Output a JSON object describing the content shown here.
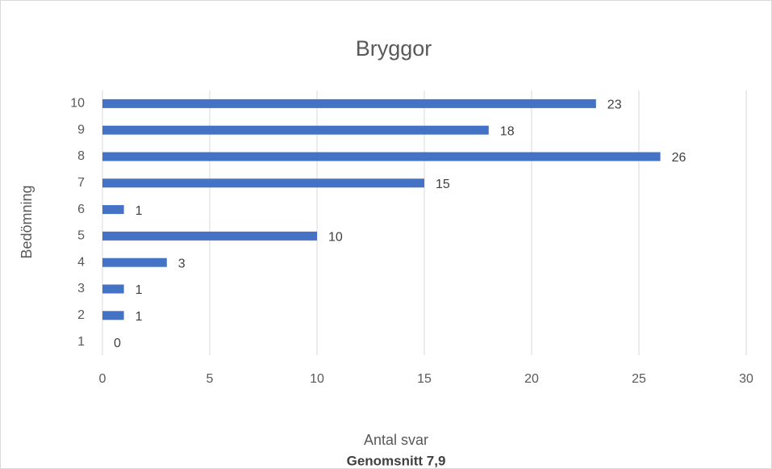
{
  "chart_data": {
    "type": "bar",
    "orientation": "horizontal",
    "title": "Bryggor",
    "x_label": "Antal svar",
    "y_label": "Bedömning",
    "annotation": "Genomsnitt 7,9",
    "categories": [
      "1",
      "2",
      "3",
      "4",
      "5",
      "6",
      "7",
      "8",
      "9",
      "10"
    ],
    "values": [
      0,
      1,
      1,
      3,
      10,
      1,
      15,
      26,
      18,
      23
    ],
    "color": "#4472c4",
    "xlim": [
      0,
      30
    ],
    "xticks": [
      0,
      5,
      10,
      15,
      20,
      25,
      30
    ],
    "grid": true
  }
}
